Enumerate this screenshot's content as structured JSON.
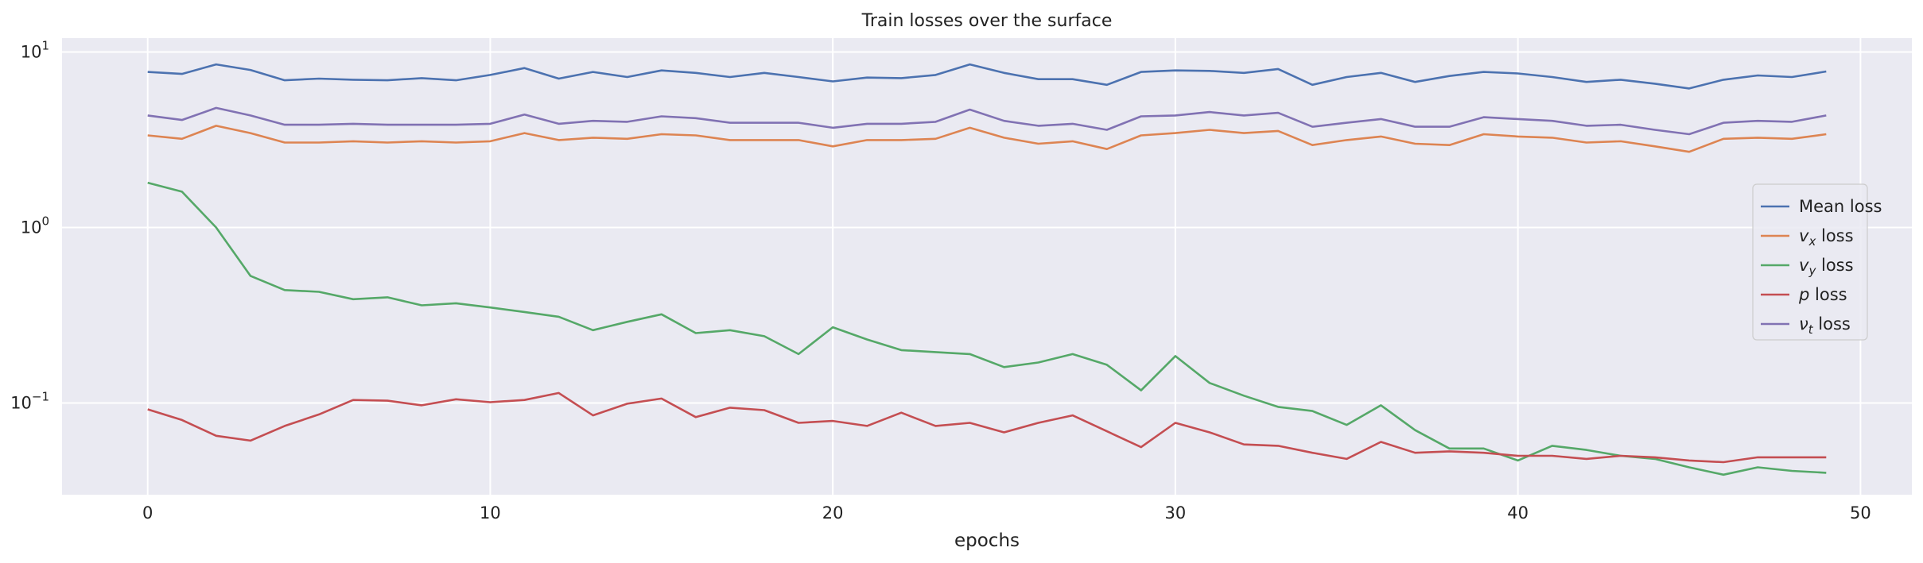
{
  "chart_data": {
    "type": "line",
    "title": "Train losses over the surface",
    "xlabel": "epochs",
    "ylabel": "",
    "yscale": "log",
    "ylim": [
      0.03,
      12
    ],
    "xlim": [
      -2.5,
      51.5
    ],
    "grid": true,
    "background": "#EAEAF2",
    "legend_position": "center-right",
    "xticks": [
      0,
      10,
      20,
      30,
      40,
      50
    ],
    "yticks": [
      {
        "value": 0.1,
        "base": "10",
        "exp": "−1"
      },
      {
        "value": 1,
        "base": "10",
        "exp": "0"
      },
      {
        "value": 10,
        "base": "10",
        "exp": "1"
      }
    ],
    "x": [
      0,
      1,
      2,
      3,
      4,
      5,
      6,
      7,
      8,
      9,
      10,
      11,
      12,
      13,
      14,
      15,
      16,
      17,
      18,
      19,
      20,
      21,
      22,
      23,
      24,
      25,
      26,
      27,
      28,
      29,
      30,
      31,
      32,
      33,
      34,
      35,
      36,
      37,
      38,
      39,
      40,
      41,
      42,
      43,
      44,
      45,
      46,
      47,
      48,
      49
    ],
    "series": [
      {
        "name": "Mean loss",
        "sym": "",
        "sub": "",
        "suffix": "",
        "color": "#4C72B0",
        "values": [
          7.7,
          7.5,
          8.5,
          7.9,
          6.9,
          7.05,
          6.95,
          6.9,
          7.1,
          6.9,
          7.4,
          8.1,
          7.05,
          7.7,
          7.2,
          7.85,
          7.6,
          7.2,
          7.6,
          7.2,
          6.8,
          7.15,
          7.1,
          7.4,
          8.5,
          7.6,
          7.0,
          7.0,
          6.5,
          7.7,
          7.85,
          7.8,
          7.6,
          8.0,
          6.5,
          7.2,
          7.6,
          6.75,
          7.3,
          7.7,
          7.55,
          7.2,
          6.75,
          6.95,
          6.6,
          6.2,
          6.95,
          7.35,
          7.2,
          7.75
        ]
      },
      {
        "name": "v_x loss",
        "sym": "v",
        "sub": "x",
        "suffix": " loss",
        "color": "#DD8452",
        "values": [
          3.35,
          3.2,
          3.8,
          3.45,
          3.05,
          3.05,
          3.1,
          3.05,
          3.1,
          3.05,
          3.1,
          3.45,
          3.15,
          3.25,
          3.2,
          3.4,
          3.35,
          3.15,
          3.15,
          3.15,
          2.9,
          3.15,
          3.15,
          3.2,
          3.7,
          3.25,
          3.0,
          3.1,
          2.8,
          3.35,
          3.45,
          3.6,
          3.45,
          3.55,
          2.95,
          3.15,
          3.3,
          3.0,
          2.95,
          3.4,
          3.3,
          3.25,
          3.05,
          3.1,
          2.9,
          2.7,
          3.2,
          3.25,
          3.2,
          3.4
        ]
      },
      {
        "name": "v_y loss",
        "sym": "v",
        "sub": "y",
        "suffix": " loss",
        "color": "#55A868",
        "values": [
          1.8,
          1.6,
          1.0,
          0.53,
          0.44,
          0.43,
          0.39,
          0.4,
          0.36,
          0.37,
          0.35,
          0.33,
          0.31,
          0.26,
          0.29,
          0.32,
          0.25,
          0.26,
          0.24,
          0.19,
          0.27,
          0.23,
          0.2,
          0.195,
          0.19,
          0.16,
          0.17,
          0.19,
          0.165,
          0.118,
          0.185,
          0.13,
          0.11,
          0.095,
          0.09,
          0.075,
          0.097,
          0.07,
          0.055,
          0.055,
          0.047,
          0.057,
          0.054,
          0.05,
          0.048,
          0.043,
          0.039,
          0.043,
          0.041,
          0.04
        ]
      },
      {
        "name": "p loss",
        "sym": "p",
        "sub": "",
        "suffix": " loss",
        "color": "#C44E52",
        "values": [
          0.092,
          0.08,
          0.065,
          0.061,
          0.074,
          0.086,
          0.104,
          0.103,
          0.097,
          0.105,
          0.101,
          0.104,
          0.114,
          0.085,
          0.099,
          0.106,
          0.083,
          0.094,
          0.091,
          0.077,
          0.079,
          0.074,
          0.088,
          0.074,
          0.077,
          0.068,
          0.077,
          0.085,
          0.069,
          0.056,
          0.077,
          0.068,
          0.058,
          0.057,
          0.052,
          0.048,
          0.06,
          0.052,
          0.053,
          0.052,
          0.05,
          0.05,
          0.048,
          0.05,
          0.049,
          0.047,
          0.046,
          0.049,
          0.049,
          0.049
        ]
      },
      {
        "name": "ν_t loss",
        "sym": "ν",
        "sub": "t",
        "suffix": " loss",
        "color": "#8172B3",
        "values": [
          4.35,
          4.1,
          4.8,
          4.35,
          3.85,
          3.85,
          3.9,
          3.85,
          3.85,
          3.85,
          3.9,
          4.4,
          3.9,
          4.05,
          4.0,
          4.3,
          4.2,
          3.95,
          3.95,
          3.95,
          3.7,
          3.9,
          3.9,
          4.0,
          4.7,
          4.05,
          3.8,
          3.9,
          3.6,
          4.3,
          4.35,
          4.55,
          4.35,
          4.5,
          3.75,
          3.95,
          4.15,
          3.75,
          3.75,
          4.25,
          4.15,
          4.05,
          3.8,
          3.85,
          3.6,
          3.4,
          3.95,
          4.05,
          4.0,
          4.35
        ]
      }
    ]
  }
}
